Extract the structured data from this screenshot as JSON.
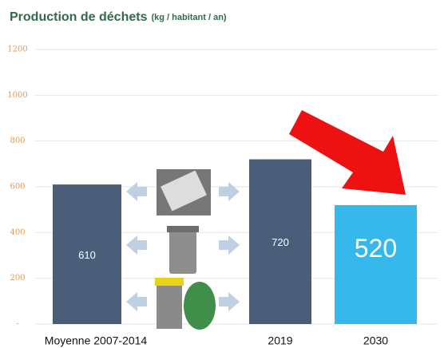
{
  "chart_data": {
    "type": "bar",
    "title": "Production de déchets",
    "subtitle": "(kg / habitant / an)",
    "categories": [
      "Moyenne 2007-2014",
      "2019",
      "2030"
    ],
    "values": [
      610,
      720,
      520
    ],
    "colors": [
      "#4a5e7a",
      "#4a5e7a",
      "#36b8ec"
    ],
    "ylim": [
      0,
      1200
    ],
    "yticks": [
      {
        "value": 0,
        "label": "-"
      },
      200,
      400,
      600,
      800,
      1000,
      1200
    ],
    "grid": true
  }
}
